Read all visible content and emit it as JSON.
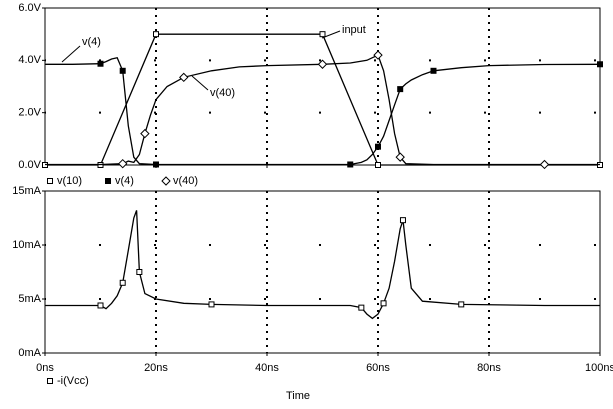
{
  "chart_data": [
    {
      "type": "line",
      "xlim": [
        0,
        100
      ],
      "xticks": [
        0,
        20,
        40,
        60,
        80,
        100
      ],
      "ylim": [
        0,
        6
      ],
      "yticks": [
        {
          "value": 0,
          "label": "0.0V"
        },
        {
          "value": 2,
          "label": "2.0V"
        },
        {
          "value": 4,
          "label": "4.0V"
        },
        {
          "value": 6,
          "label": "6.0V"
        }
      ],
      "grid": true,
      "annotations": [
        "v(4)",
        "input",
        "v(40)"
      ],
      "series": [
        {
          "name": "v(10)",
          "color": "#000000",
          "marker": "square-open",
          "x": [
            0,
            10,
            20,
            50,
            60,
            100
          ],
          "values": [
            0,
            0,
            5,
            5,
            0,
            0
          ]
        },
        {
          "name": "v(4)",
          "color": "#000000",
          "marker": "square-filled",
          "x": [
            0,
            5,
            10,
            11,
            12,
            13,
            14,
            15,
            16,
            17,
            20,
            30,
            40,
            50,
            55,
            57,
            58,
            59,
            60,
            61,
            62,
            63,
            64,
            65,
            66,
            68,
            70,
            75,
            80,
            90,
            100
          ],
          "values": [
            3.85,
            3.85,
            3.87,
            3.95,
            4.05,
            4.1,
            3.6,
            1.5,
            0.3,
            0.05,
            0.02,
            0.02,
            0.02,
            0.02,
            0.02,
            0.1,
            0.2,
            0.4,
            0.7,
            1.1,
            1.7,
            2.3,
            2.9,
            3.1,
            3.25,
            3.45,
            3.6,
            3.72,
            3.8,
            3.84,
            3.85
          ]
        },
        {
          "name": "v(40)",
          "color": "#000000",
          "marker": "diamond-open",
          "x": [
            0,
            10,
            14,
            15,
            16,
            17,
            18,
            19,
            20,
            22,
            25,
            30,
            35,
            40,
            50,
            55,
            58,
            59,
            60,
            61,
            62,
            63,
            64,
            65,
            70,
            80,
            90,
            100
          ],
          "values": [
            0.02,
            0.02,
            0.05,
            0.15,
            0.1,
            0.4,
            1.2,
            1.9,
            2.5,
            3.0,
            3.35,
            3.6,
            3.75,
            3.8,
            3.85,
            3.9,
            4.0,
            4.1,
            4.2,
            3.6,
            2.5,
            1.2,
            0.3,
            0.05,
            0.02,
            0.02,
            0.02,
            0.02
          ]
        }
      ]
    },
    {
      "type": "line",
      "x_label": "Time",
      "xlim": [
        0,
        100
      ],
      "xticks": [
        {
          "value": 0,
          "label": "0ns"
        },
        {
          "value": 20,
          "label": "20ns"
        },
        {
          "value": 40,
          "label": "40ns"
        },
        {
          "value": 60,
          "label": "60ns"
        },
        {
          "value": 80,
          "label": "80ns"
        },
        {
          "value": 100,
          "label": "100ns"
        }
      ],
      "ylim": [
        0,
        15
      ],
      "yticks": [
        {
          "value": 0,
          "label": "0mA"
        },
        {
          "value": 5,
          "label": "5mA"
        },
        {
          "value": 10,
          "label": "10mA"
        },
        {
          "value": 15,
          "label": "15mA"
        }
      ],
      "grid": true,
      "series": [
        {
          "name": "-i(Vcc)",
          "color": "#000000",
          "marker": "square-open",
          "x": [
            0,
            5,
            10,
            11,
            12,
            13,
            14,
            15,
            16,
            16.5,
            17,
            18,
            20,
            25,
            30,
            40,
            50,
            55,
            57,
            58,
            59,
            60,
            61,
            62,
            63,
            64,
            64.5,
            65,
            66,
            68,
            75,
            90,
            100
          ],
          "values": [
            4.4,
            4.4,
            4.4,
            4.1,
            4.6,
            5.3,
            6.5,
            9.5,
            12.5,
            13.2,
            7.5,
            5.5,
            5.0,
            4.6,
            4.5,
            4.4,
            4.4,
            4.4,
            4.2,
            3.6,
            3.2,
            3.6,
            4.6,
            6.0,
            8.5,
            11.5,
            12.3,
            10,
            6,
            4.8,
            4.5,
            4.4,
            4.4
          ]
        }
      ]
    }
  ]
}
